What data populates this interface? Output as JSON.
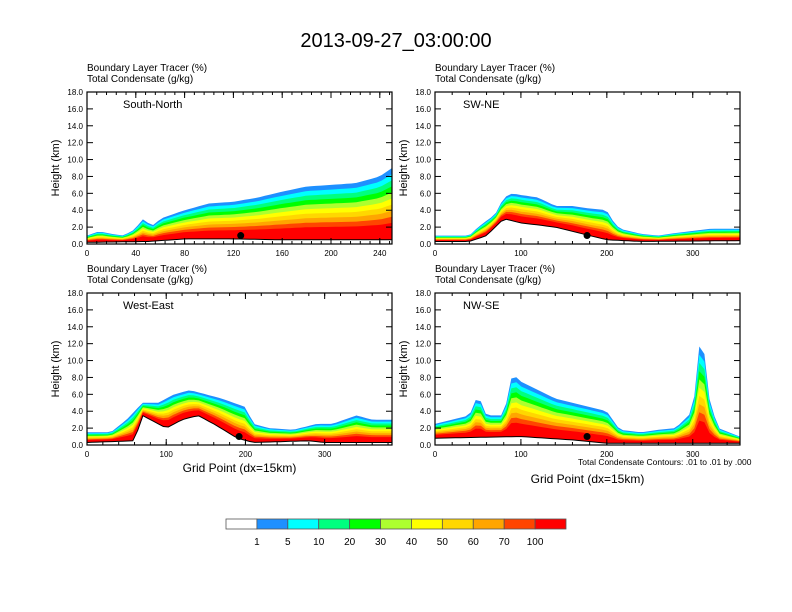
{
  "title": "2013-09-27_03:00:00",
  "colorbar": {
    "colors": [
      "#ffffff",
      "#1e90ff",
      "#00ffff",
      "#00ff7f",
      "#00ff00",
      "#adff2f",
      "#ffff00",
      "#ffd700",
      "#ffa500",
      "#ff4500",
      "#ff0000"
    ],
    "labels": [
      "1",
      "5",
      "10",
      "20",
      "30",
      "40",
      "50",
      "60",
      "70",
      "100"
    ]
  },
  "chart_data": [
    {
      "type": "heatmap",
      "panel_label": "South-North",
      "header_line1": "Boundary Layer Tracer   (%)",
      "header_line2": "Total Condensate   (g/kg)",
      "ylabel": "Height (km)",
      "xlabel": "",
      "xlim": [
        0,
        250
      ],
      "ylim": [
        0,
        18
      ],
      "xticks": [
        "0",
        "40",
        "80",
        "120",
        "160",
        "200",
        "240"
      ],
      "xtick_values": [
        0,
        40,
        80,
        120,
        160,
        200,
        240
      ],
      "yticks": [
        "0.0",
        "2.0",
        "4.0",
        "6.0",
        "8.0",
        "10.0",
        "12.0",
        "14.0",
        "16.0",
        "18.0"
      ],
      "profile": {
        "x": [
          0,
          10,
          20,
          30,
          40,
          45,
          50,
          55,
          60,
          80,
          100,
          120,
          140,
          160,
          180,
          200,
          220,
          240,
          250
        ],
        "top": [
          1.0,
          1.5,
          1.2,
          1.0,
          1.8,
          3.0,
          2.5,
          2.2,
          3.0,
          4.0,
          4.8,
          5.0,
          5.5,
          6.2,
          6.8,
          7.0,
          7.2,
          8.0,
          9.0
        ]
      },
      "terrain": {
        "x": [
          0,
          50,
          60,
          80,
          120,
          160,
          200,
          250
        ],
        "h": [
          0.2,
          0.3,
          0.4,
          0.6,
          0.6,
          0.5,
          0.5,
          0.5
        ]
      },
      "marker": {
        "x": 126,
        "y": 1.0
      }
    },
    {
      "type": "heatmap",
      "panel_label": "SW-NE",
      "header_line1": "Boundary Layer Tracer   (%)",
      "header_line2": "Total Condensate   (g/kg)",
      "ylabel": "Height (km)",
      "xlabel": "",
      "xlim": [
        0,
        355
      ],
      "ylim": [
        0,
        18
      ],
      "xticks": [
        "0",
        "100",
        "200",
        "300"
      ],
      "xtick_values": [
        0,
        100,
        200,
        300
      ],
      "yticks": [
        "0.0",
        "2.0",
        "4.0",
        "6.0",
        "8.0",
        "10.0",
        "12.0",
        "14.0",
        "16.0",
        "18.0"
      ],
      "profile": {
        "x": [
          0,
          40,
          50,
          70,
          80,
          90,
          100,
          120,
          140,
          160,
          180,
          200,
          205,
          215,
          240,
          260,
          280,
          320,
          355
        ],
        "top": [
          1.0,
          1.0,
          2.0,
          3.5,
          5.5,
          6.0,
          5.8,
          5.5,
          4.5,
          4.5,
          4.2,
          4.0,
          3.0,
          1.8,
          1.2,
          1.0,
          1.3,
          1.8,
          1.8
        ]
      },
      "terrain": {
        "x": [
          0,
          40,
          60,
          80,
          100,
          140,
          180,
          200,
          240,
          355
        ],
        "h": [
          0.3,
          0.3,
          1.0,
          3.0,
          2.5,
          2.0,
          1.0,
          0.5,
          0.3,
          0.4
        ]
      },
      "marker": {
        "x": 177,
        "y": 1.0
      }
    },
    {
      "type": "heatmap",
      "panel_label": "West-East",
      "header_line1": "Boundary Layer Tracer   (%)",
      "header_line2": "Total Condensate   (g/kg)",
      "ylabel": "Height (km)",
      "xlabel": "Grid Point (dx=15km)",
      "xlim": [
        0,
        385
      ],
      "ylim": [
        0,
        18
      ],
      "xticks": [
        "0",
        "100",
        "200",
        "300"
      ],
      "xtick_values": [
        0,
        100,
        200,
        300
      ],
      "yticks": [
        "0.0",
        "2.0",
        "4.0",
        "6.0",
        "8.0",
        "10.0",
        "12.0",
        "14.0",
        "16.0",
        "18.0"
      ],
      "profile": {
        "x": [
          0,
          30,
          50,
          70,
          90,
          110,
          130,
          150,
          170,
          200,
          210,
          230,
          260,
          290,
          310,
          340,
          360,
          385
        ],
        "top": [
          1.5,
          1.5,
          3.0,
          5.0,
          5.0,
          6.0,
          6.5,
          6.0,
          5.5,
          4.5,
          2.5,
          2.0,
          1.8,
          2.5,
          2.5,
          3.5,
          3.0,
          3.0
        ]
      },
      "terrain": {
        "x": [
          0,
          60,
          70,
          100,
          120,
          140,
          160,
          190,
          210,
          280,
          300,
          385
        ],
        "h": [
          0.3,
          0.5,
          3.5,
          2.0,
          3.0,
          3.5,
          2.5,
          0.8,
          0.3,
          0.5,
          0.3,
          0.3
        ]
      },
      "marker": {
        "x": 192,
        "y": 1.0
      }
    },
    {
      "type": "heatmap",
      "panel_label": "NW-SE",
      "header_line1": "Boundary Layer Tracer   (%)",
      "header_line2": "Total Condensate   (g/kg)",
      "ylabel": "Height (km)",
      "xlabel": "Grid Point (dx=15km)",
      "footnote": "Total Condensate Contours: .01 to .01 by .000",
      "xlim": [
        0,
        355
      ],
      "ylim": [
        0,
        18
      ],
      "xticks": [
        "0",
        "100",
        "200",
        "300"
      ],
      "xtick_values": [
        0,
        100,
        200,
        300
      ],
      "yticks": [
        "0.0",
        "2.0",
        "4.0",
        "6.0",
        "8.0",
        "10.0",
        "12.0",
        "14.0",
        "16.0",
        "18.0"
      ],
      "profile": {
        "x": [
          0,
          20,
          40,
          50,
          60,
          80,
          90,
          100,
          120,
          140,
          160,
          180,
          200,
          215,
          240,
          260,
          280,
          300,
          310,
          320,
          330,
          355
        ],
        "top": [
          2.5,
          3.0,
          3.5,
          6.0,
          3.5,
          3.5,
          8.5,
          7.5,
          6.5,
          5.5,
          5.0,
          4.5,
          4.0,
          1.8,
          1.5,
          1.8,
          2.0,
          4.0,
          14.0,
          5.0,
          2.0,
          1.0
        ]
      },
      "terrain": {
        "x": [
          0,
          100,
          160,
          200,
          220,
          355
        ],
        "h": [
          0.8,
          1.0,
          0.6,
          0.2,
          0.2,
          0.2
        ]
      },
      "marker": {
        "x": 177,
        "y": 1.0
      }
    }
  ]
}
